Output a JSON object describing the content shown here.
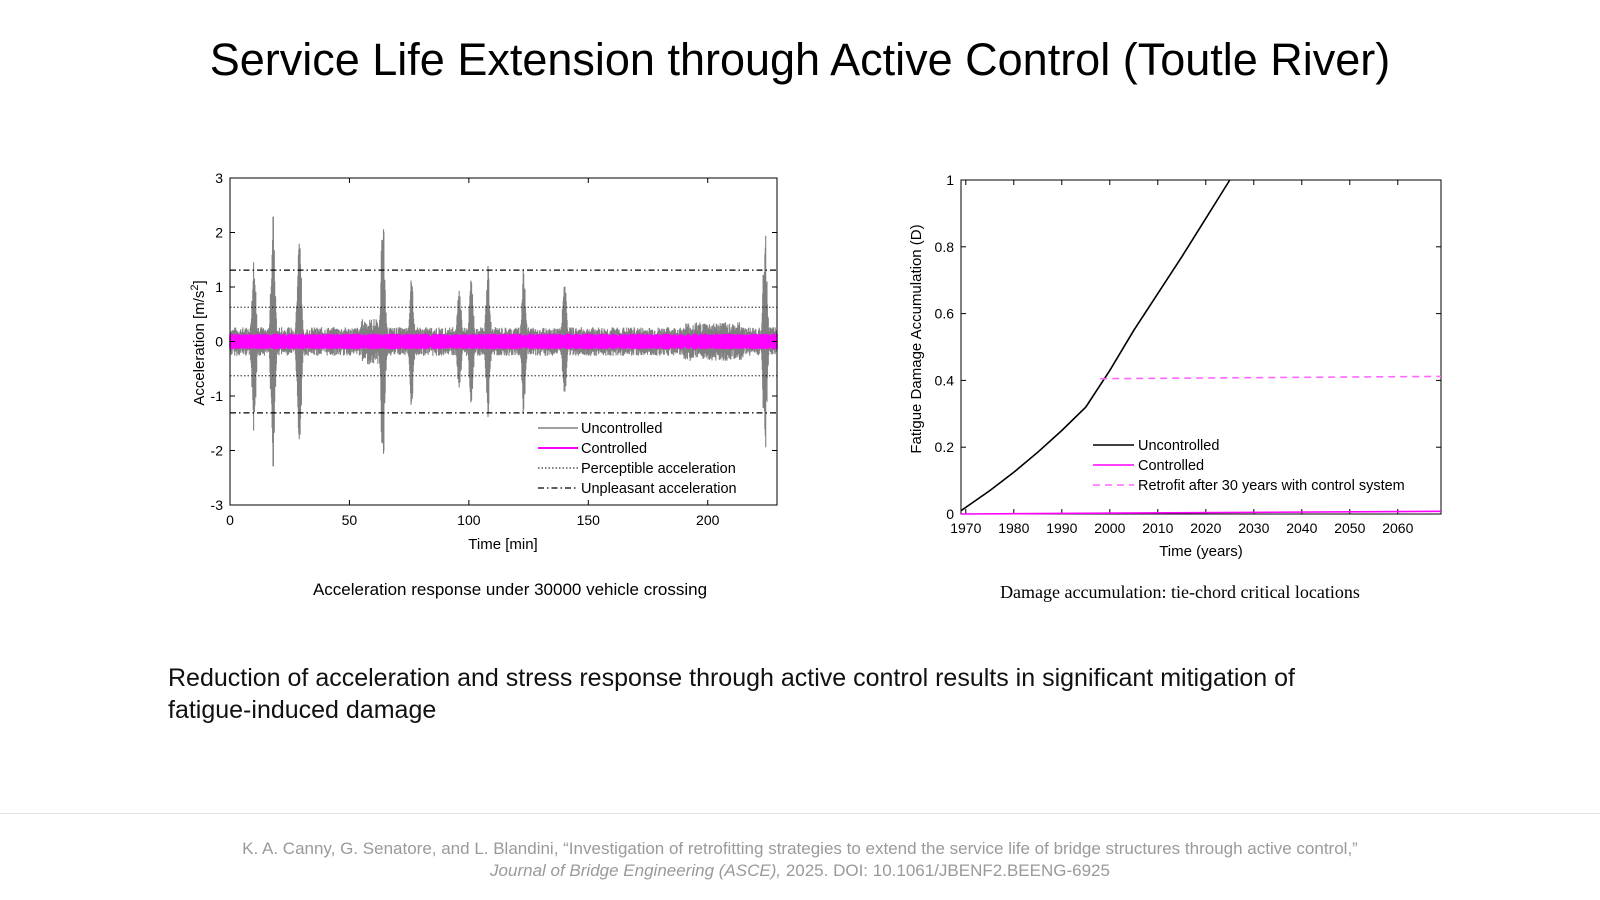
{
  "slide": {
    "title": "Service Life Extension through Active Control (Toutle River)",
    "summary": "Reduction of acceleration and stress response through active control results in significant mitigation of fatigue-induced damage",
    "citation_line1": "K. A. Canny, G. Senatore, and L. Blandini, “Investigation of retrofitting strategies to extend the service life of bridge structures through active control,”",
    "citation_journal": "Journal of Bridge Engineering (ASCE),",
    "citation_tail": " 2025. DOI: 10.1061/JBENF2.BEENG-6925"
  },
  "colors": {
    "uncontrolled_left": "#808080",
    "controlled": "#ff00ff",
    "uncontrolled_right": "#000000",
    "retrofit": "#ff66ff"
  },
  "chart_data": [
    {
      "type": "line",
      "caption": "Acceleration response under 30000 vehicle crossing",
      "xlabel": "Time [min]",
      "ylabel": "Acceleration [m/s",
      "ylabel_sup": "2",
      "ylabel_end": "]",
      "xlim": [
        0,
        229
      ],
      "ylim": [
        -3,
        3
      ],
      "xticks": [
        0,
        50,
        100,
        150,
        200
      ],
      "yticks": [
        -3,
        -2,
        -1,
        0,
        1,
        2,
        3
      ],
      "grid": false,
      "legend_position": "bottom-right",
      "series": [
        {
          "name": "Uncontrolled",
          "baseline_amplitude": 0.22,
          "peaks": [
            {
              "t": 10,
              "pos": 1.6,
              "neg": -1.8
            },
            {
              "t": 18,
              "pos": 2.4,
              "neg": -2.4
            },
            {
              "t": 29,
              "pos": 2.3,
              "neg": -2.3
            },
            {
              "t": 64,
              "pos": 2.4,
              "neg": -2.4
            },
            {
              "t": 76,
              "pos": 1.25,
              "neg": -1.3
            },
            {
              "t": 96,
              "pos": 1.1,
              "neg": -1.0
            },
            {
              "t": 101,
              "pos": 1.3,
              "neg": -1.3
            },
            {
              "t": 108,
              "pos": 1.4,
              "neg": -1.4
            },
            {
              "t": 123,
              "pos": 1.4,
              "neg": -1.4
            },
            {
              "t": 140,
              "pos": 1.2,
              "neg": -1.1
            },
            {
              "t": 224,
              "pos": 2.1,
              "neg": -2.1
            }
          ]
        },
        {
          "name": "Controlled",
          "baseline_amplitude": 0.12
        }
      ],
      "reference_lines": [
        {
          "name": "Perceptible acceleration",
          "style": "dotted",
          "values": [
            0.63,
            -0.63
          ]
        },
        {
          "name": "Unpleasant acceleration",
          "style": "dash-dot",
          "values": [
            1.31,
            -1.31
          ]
        }
      ]
    },
    {
      "type": "line",
      "caption": "Damage accumulation: tie-chord critical locations",
      "xlabel": "Time (years)",
      "ylabel": "Fatigue Damage Accumulation (D)",
      "xlim": [
        1969,
        2069
      ],
      "ylim": [
        0,
        1
      ],
      "xticks": [
        1970,
        1980,
        1990,
        2000,
        2010,
        2020,
        2030,
        2040,
        2050,
        2060
      ],
      "yticks": [
        0,
        0.2,
        0.4,
        0.6,
        0.8,
        1
      ],
      "grid": false,
      "legend_position": "bottom-right",
      "series": [
        {
          "name": "Uncontrolled",
          "style": "solid",
          "x": [
            1969,
            1975,
            1980,
            1985,
            1990,
            1995,
            2000,
            2005,
            2010,
            2015,
            2020,
            2025
          ],
          "y": [
            0.01,
            0.07,
            0.125,
            0.185,
            0.25,
            0.32,
            0.43,
            0.55,
            0.66,
            0.77,
            0.885,
            1.0
          ]
        },
        {
          "name": "Controlled",
          "style": "solid",
          "x": [
            1969,
            2069
          ],
          "y": [
            0.0,
            0.008
          ]
        },
        {
          "name": "Retrofit after 30 years with control system",
          "style": "dashed",
          "x": [
            1998,
            2069
          ],
          "y": [
            0.405,
            0.412
          ]
        }
      ]
    }
  ]
}
